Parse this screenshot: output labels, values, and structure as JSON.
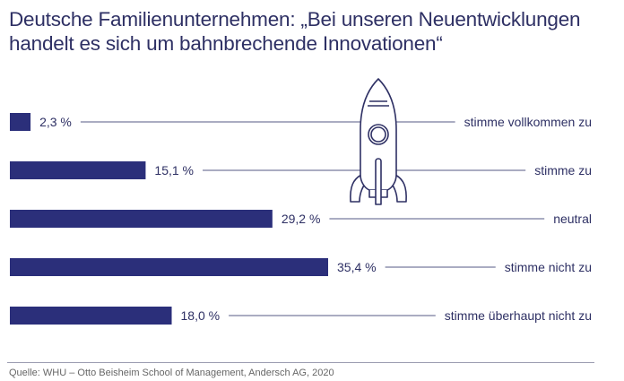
{
  "chart_data": {
    "type": "bar",
    "orientation": "horizontal",
    "title": "Deutsche Familienunternehmen: „Bei unseren Neuentwicklungen handelt es sich um bahnbrechende Innovationen“",
    "categories": [
      "stimme vollkommen zu",
      "stimme zu",
      "neutral",
      "stimme nicht zu",
      "stimme überhaupt nicht zu"
    ],
    "values": [
      2.3,
      15.1,
      29.2,
      35.4,
      18.0
    ],
    "value_labels": [
      "2,3 %",
      "15,1 %",
      "29,2 %",
      "35,4 %",
      "18,0 %"
    ],
    "unit": "%",
    "xlim": [
      0,
      40
    ],
    "grid": false,
    "bar_color": "#2b2f7a"
  },
  "source": "Quelle: WHU – Otto Beisheim School of Management, Andersch AG, 2020"
}
